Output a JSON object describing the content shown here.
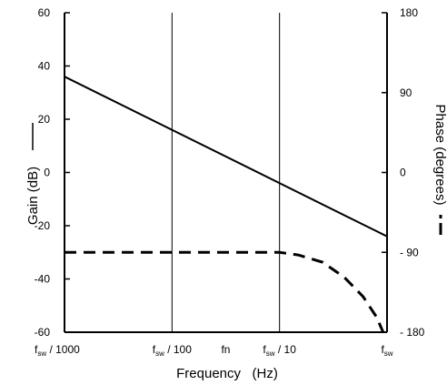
{
  "chart_data": {
    "type": "line",
    "xlabel": "Frequency   (Hz)",
    "ylabel_left": "Gain (dB)",
    "ylabel_right": "Phase (degrees)",
    "x_scale": "log",
    "x_ticks": [
      {
        "x": 0.001,
        "main": "f",
        "sub": "sw",
        "suffix": " / 1000"
      },
      {
        "x": 0.01,
        "main": "f",
        "sub": "sw",
        "suffix": " / 100"
      },
      {
        "x": 0.0316,
        "main": "fn",
        "sub": "",
        "suffix": ""
      },
      {
        "x": 0.1,
        "main": "f",
        "sub": "sw",
        "suffix": " / 10"
      },
      {
        "x": 1,
        "main": "f",
        "sub": "sw",
        "suffix": ""
      }
    ],
    "xlim": [
      0.001,
      1
    ],
    "ylim_left": [
      -60,
      60
    ],
    "ylim_right": [
      -180,
      180
    ],
    "y_ticks_left": [
      {
        "value": 60,
        "label": "60"
      },
      {
        "value": 40,
        "label": "40"
      },
      {
        "value": 20,
        "label": "20"
      },
      {
        "value": 0,
        "label": "0"
      },
      {
        "value": -20,
        "label": "-20"
      },
      {
        "value": -40,
        "label": "-40"
      },
      {
        "value": -60,
        "label": "-60"
      }
    ],
    "y_ticks_right": [
      {
        "value": 180,
        "label": "180"
      },
      {
        "value": 90,
        "label": "90"
      },
      {
        "value": 0,
        "label": "0"
      },
      {
        "value": -90,
        "label": "- 90"
      },
      {
        "value": -180,
        "label": "- 180"
      }
    ],
    "gridlines_x": [
      0.01,
      0.1
    ],
    "series": [
      {
        "axis": "left",
        "style": "solid",
        "x": [
          0.001,
          1
        ],
        "y": [
          36,
          -24
        ]
      },
      {
        "axis": "right",
        "style": "dashed",
        "x": [
          0.001,
          0.01,
          0.1,
          0.15,
          0.25,
          0.4,
          0.6,
          0.8,
          0.92
        ],
        "y": [
          -90,
          -90,
          -90,
          -93,
          -101,
          -118,
          -140,
          -163,
          -180
        ]
      }
    ],
    "grid": false,
    "legend": "axis titles"
  }
}
